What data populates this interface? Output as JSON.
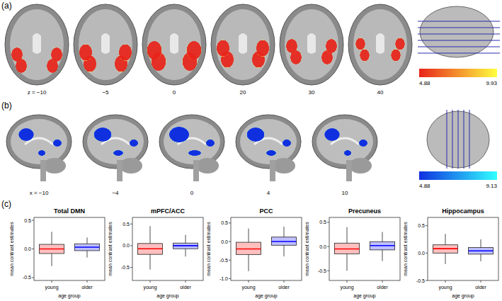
{
  "panels": {
    "a": {
      "label": "(a)",
      "slices": [
        "z = −10",
        "−5",
        "0",
        "20",
        "30",
        "40"
      ],
      "colorbar": {
        "range": [
          4.88,
          9.93
        ],
        "ticks": [
          4.88,
          9.93
        ],
        "colors": [
          "#e8231a",
          "#ffff40"
        ]
      }
    },
    "b": {
      "label": "(b)",
      "slices": [
        "x = −10",
        "−4",
        "0",
        "4",
        "10"
      ],
      "colorbar": {
        "range": [
          4.88,
          9.13
        ],
        "ticks": [
          4.88,
          9.13
        ],
        "colors": [
          "#1030e0",
          "#30ffff"
        ]
      }
    },
    "c": {
      "label": "(c)"
    }
  },
  "chart_data": [
    {
      "type": "box",
      "title": "Total DMN",
      "x_label": "age group",
      "y_label": "mean contrast estimates",
      "categories": [
        "young",
        "older"
      ],
      "colors": [
        "#ff0000",
        "#0000ff"
      ],
      "ylim": [
        -0.55,
        0.55
      ],
      "yticks": [
        -0.5,
        {
          "value": 0,
          "label": "0.0"
        },
        0.5
      ],
      "boxes": [
        {
          "low": -0.3,
          "q1": -0.08,
          "median": 0.0,
          "q3": 0.08,
          "high": 0.3
        },
        {
          "low": -0.15,
          "q1": -0.03,
          "median": 0.03,
          "q3": 0.09,
          "high": 0.2
        }
      ]
    },
    {
      "type": "box",
      "title": "mPFC/ACC",
      "x_label": "age group",
      "y_label": "mean contrast estimates",
      "categories": [
        "young",
        "older"
      ],
      "colors": [
        "#ff0000",
        "#0000ff"
      ],
      "ylim": [
        -0.8,
        0.65
      ],
      "yticks": [
        -0.5,
        {
          "value": 0,
          "label": "0.0"
        },
        0.5
      ],
      "boxes": [
        {
          "low": -0.55,
          "q1": -0.2,
          "median": -0.07,
          "q3": 0.05,
          "high": 0.45
        },
        {
          "low": -0.25,
          "q1": -0.07,
          "median": 0.0,
          "q3": 0.06,
          "high": 0.25
        }
      ]
    },
    {
      "type": "box",
      "title": "PCC",
      "x_label": "age group",
      "y_label": "mean contrast estimates",
      "categories": [
        "young",
        "older"
      ],
      "colors": [
        "#ff0000",
        "#0000ff"
      ],
      "ylim": [
        -1.05,
        0.65
      ],
      "yticks": [
        {
          "value": -1,
          "label": "-1.0"
        },
        -0.5,
        {
          "value": 0,
          "label": "0.0"
        },
        0.5
      ],
      "boxes": [
        {
          "low": -0.8,
          "q1": -0.35,
          "median": -0.2,
          "q3": -0.02,
          "high": 0.35
        },
        {
          "low": -0.4,
          "q1": -0.1,
          "median": 0.0,
          "q3": 0.12,
          "high": 0.4
        }
      ]
    },
    {
      "type": "box",
      "title": "Precuneus",
      "x_label": "age group",
      "y_label": "mean contrast estimates",
      "categories": [
        "young",
        "older"
      ],
      "colors": [
        "#ff0000",
        "#0000ff"
      ],
      "ylim": [
        -0.7,
        0.6
      ],
      "yticks": [
        -0.5,
        {
          "value": 0,
          "label": "0.0"
        },
        0.5
      ],
      "boxes": [
        {
          "low": -0.5,
          "q1": -0.15,
          "median": -0.05,
          "q3": 0.07,
          "high": 0.4
        },
        {
          "low": -0.3,
          "q1": -0.07,
          "median": 0.02,
          "q3": 0.1,
          "high": 0.3
        }
      ]
    },
    {
      "type": "box",
      "title": "Hippocampus",
      "x_label": "age group",
      "y_label": "mean contrast estimates",
      "categories": [
        "young",
        "older"
      ],
      "colors": [
        "#ff0000",
        "#0000ff"
      ],
      "ylim": [
        -0.5,
        0.65
      ],
      "yticks": [
        -0.5,
        {
          "value": 0,
          "label": "0.0"
        },
        0.5
      ],
      "boxes": [
        {
          "low": -0.2,
          "q1": 0.0,
          "median": 0.08,
          "q3": 0.15,
          "high": 0.35
        },
        {
          "low": -0.15,
          "q1": -0.02,
          "median": 0.04,
          "q3": 0.1,
          "high": 0.25
        }
      ]
    }
  ]
}
